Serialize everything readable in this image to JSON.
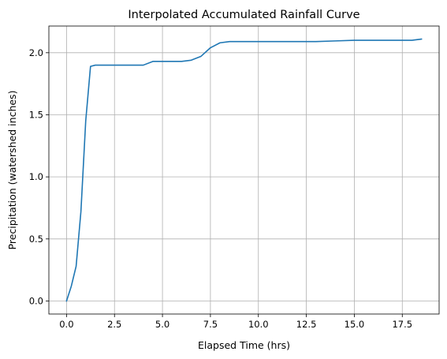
{
  "chart_data": {
    "type": "line",
    "title": "Interpolated Accumulated Rainfall Curve",
    "xlabel": "Elapsed Time (hrs)",
    "ylabel": "Precipitation (watershed inches)",
    "xlim": [
      -0.92,
      19.42
    ],
    "ylim": [
      -0.105,
      2.215
    ],
    "grid": true,
    "x_ticks": [
      0.0,
      2.5,
      5.0,
      7.5,
      10.0,
      12.5,
      15.0,
      17.5
    ],
    "x_tick_labels": [
      "0.0",
      "2.5",
      "5.0",
      "7.5",
      "10.0",
      "12.5",
      "15.0",
      "17.5"
    ],
    "y_ticks": [
      0.0,
      0.5,
      1.0,
      1.5,
      2.0
    ],
    "y_tick_labels": [
      "0.0",
      "0.5",
      "1.0",
      "1.5",
      "2.0"
    ],
    "series": [
      {
        "color": "#1f77b4",
        "x": [
          0.0,
          0.25,
          0.5,
          0.75,
          1.0,
          1.25,
          1.5,
          2.0,
          2.5,
          3.0,
          3.5,
          4.0,
          4.5,
          5.0,
          5.5,
          6.0,
          6.5,
          7.0,
          7.5,
          8.0,
          8.5,
          9.0,
          10.0,
          11.0,
          12.0,
          13.0,
          14.0,
          15.0,
          16.0,
          17.0,
          18.0,
          18.5
        ],
        "y": [
          0.0,
          0.12,
          0.28,
          0.72,
          1.45,
          1.89,
          1.9,
          1.9,
          1.9,
          1.9,
          1.9,
          1.9,
          1.93,
          1.93,
          1.93,
          1.93,
          1.94,
          1.97,
          2.04,
          2.08,
          2.09,
          2.09,
          2.09,
          2.09,
          2.09,
          2.09,
          2.095,
          2.1,
          2.1,
          2.1,
          2.1,
          2.11
        ]
      }
    ]
  }
}
